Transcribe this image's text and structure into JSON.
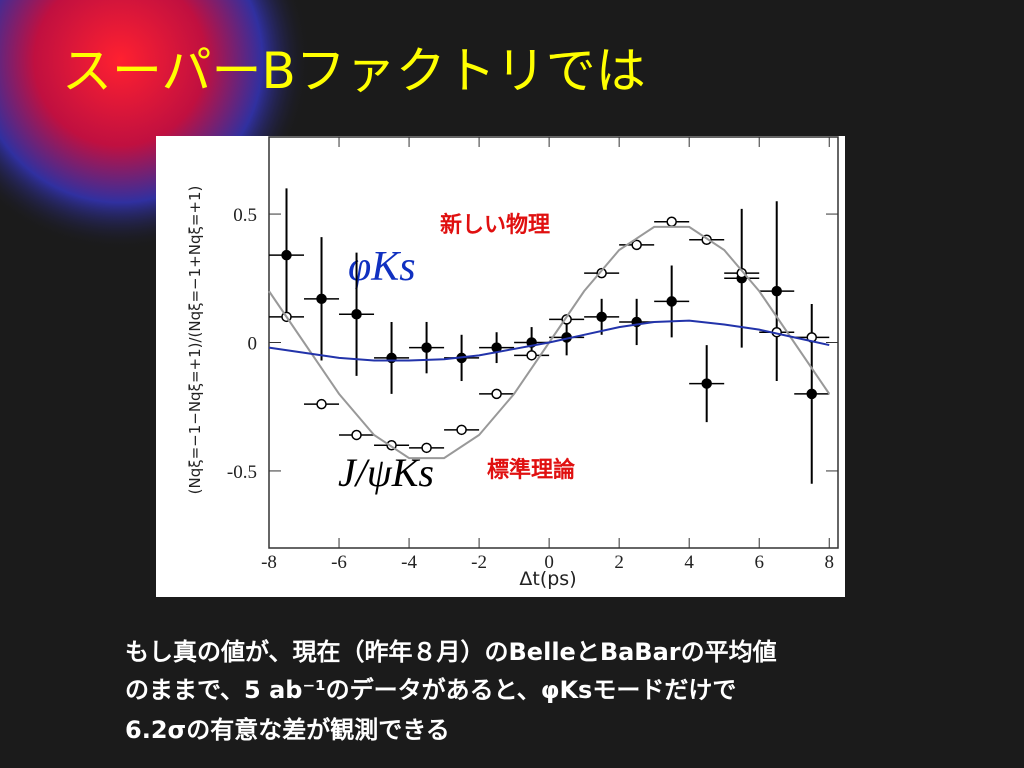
{
  "title": "スーパーBファクトリでは",
  "body": [
    "もし真の値が、現在（昨年８月）のBelleとBaBarの平均値",
    "のままで、5 ab⁻¹のデータがあると、φKsモードだけで",
    "6.2σの有意な差が観測できる"
  ],
  "chart_data": {
    "type": "scatter",
    "x_label": "Δt(ps)",
    "y_label": "(Nqξ=−1−Nqξ=+1)/(Nqξ=−1+Nqξ=+1)",
    "annotations": [
      "φKs",
      "J/ψKs",
      "新しい物理",
      "標準理論"
    ],
    "xlim": [
      -8,
      8.25
    ],
    "ylim": [
      -0.8,
      0.8
    ],
    "xticks": [
      -8,
      -6,
      -4,
      -2,
      0,
      2,
      4,
      6,
      8
    ],
    "yticks": [
      -0.5,
      0,
      0.5
    ],
    "series": [
      {
        "style": "filled",
        "color": "#000000",
        "xerr": 0.5,
        "x": [
          -7.5,
          -6.5,
          -5.5,
          -4.5,
          -3.5,
          -2.5,
          -1.5,
          -0.5,
          0.5,
          1.5,
          2.5,
          3.5,
          4.5,
          5.5,
          6.5,
          7.5
        ],
        "values": [
          0.34,
          0.17,
          0.11,
          -0.06,
          -0.02,
          -0.06,
          -0.02,
          0.0,
          0.02,
          0.1,
          0.08,
          0.16,
          -0.16,
          0.25,
          0.2,
          -0.2
        ],
        "errors": [
          0.26,
          0.24,
          0.24,
          0.14,
          0.1,
          0.09,
          0.06,
          0.06,
          0.07,
          0.07,
          0.09,
          0.14,
          0.15,
          0.27,
          0.35,
          0.35
        ]
      },
      {
        "style": "open",
        "color": "#000000",
        "xerr": 0.5,
        "x": [
          -7.5,
          -6.5,
          -5.5,
          -4.5,
          -3.5,
          -2.5,
          -1.5,
          -0.5,
          0.5,
          1.5,
          2.5,
          3.5,
          4.5,
          5.5,
          6.5,
          7.5
        ],
        "values": [
          0.1,
          -0.24,
          -0.36,
          -0.4,
          -0.41,
          -0.34,
          -0.2,
          -0.05,
          0.09,
          0.27,
          0.38,
          0.47,
          0.4,
          0.27,
          0.04,
          0.02
        ]
      },
      {
        "style": "line",
        "color": "#999999",
        "x": [
          -8,
          -7,
          -6,
          -5,
          -4,
          -3,
          -2,
          -1,
          0,
          1,
          2,
          3,
          4,
          5,
          6,
          7,
          8
        ],
        "values": [
          0.2,
          0.0,
          -0.2,
          -0.36,
          -0.45,
          -0.45,
          -0.36,
          -0.2,
          0.0,
          0.2,
          0.36,
          0.45,
          0.45,
          0.36,
          0.2,
          0.0,
          -0.2
        ]
      },
      {
        "style": "line",
        "color": "#2233aa",
        "x": [
          -8,
          -7,
          -6,
          -5,
          -4,
          -3,
          -2,
          -1,
          0,
          1,
          2,
          3,
          4,
          5,
          6,
          7,
          8
        ],
        "values": [
          -0.02,
          -0.04,
          -0.06,
          -0.07,
          -0.07,
          -0.065,
          -0.05,
          -0.025,
          0.0,
          0.03,
          0.06,
          0.08,
          0.085,
          0.07,
          0.05,
          0.02,
          -0.01
        ]
      }
    ]
  }
}
